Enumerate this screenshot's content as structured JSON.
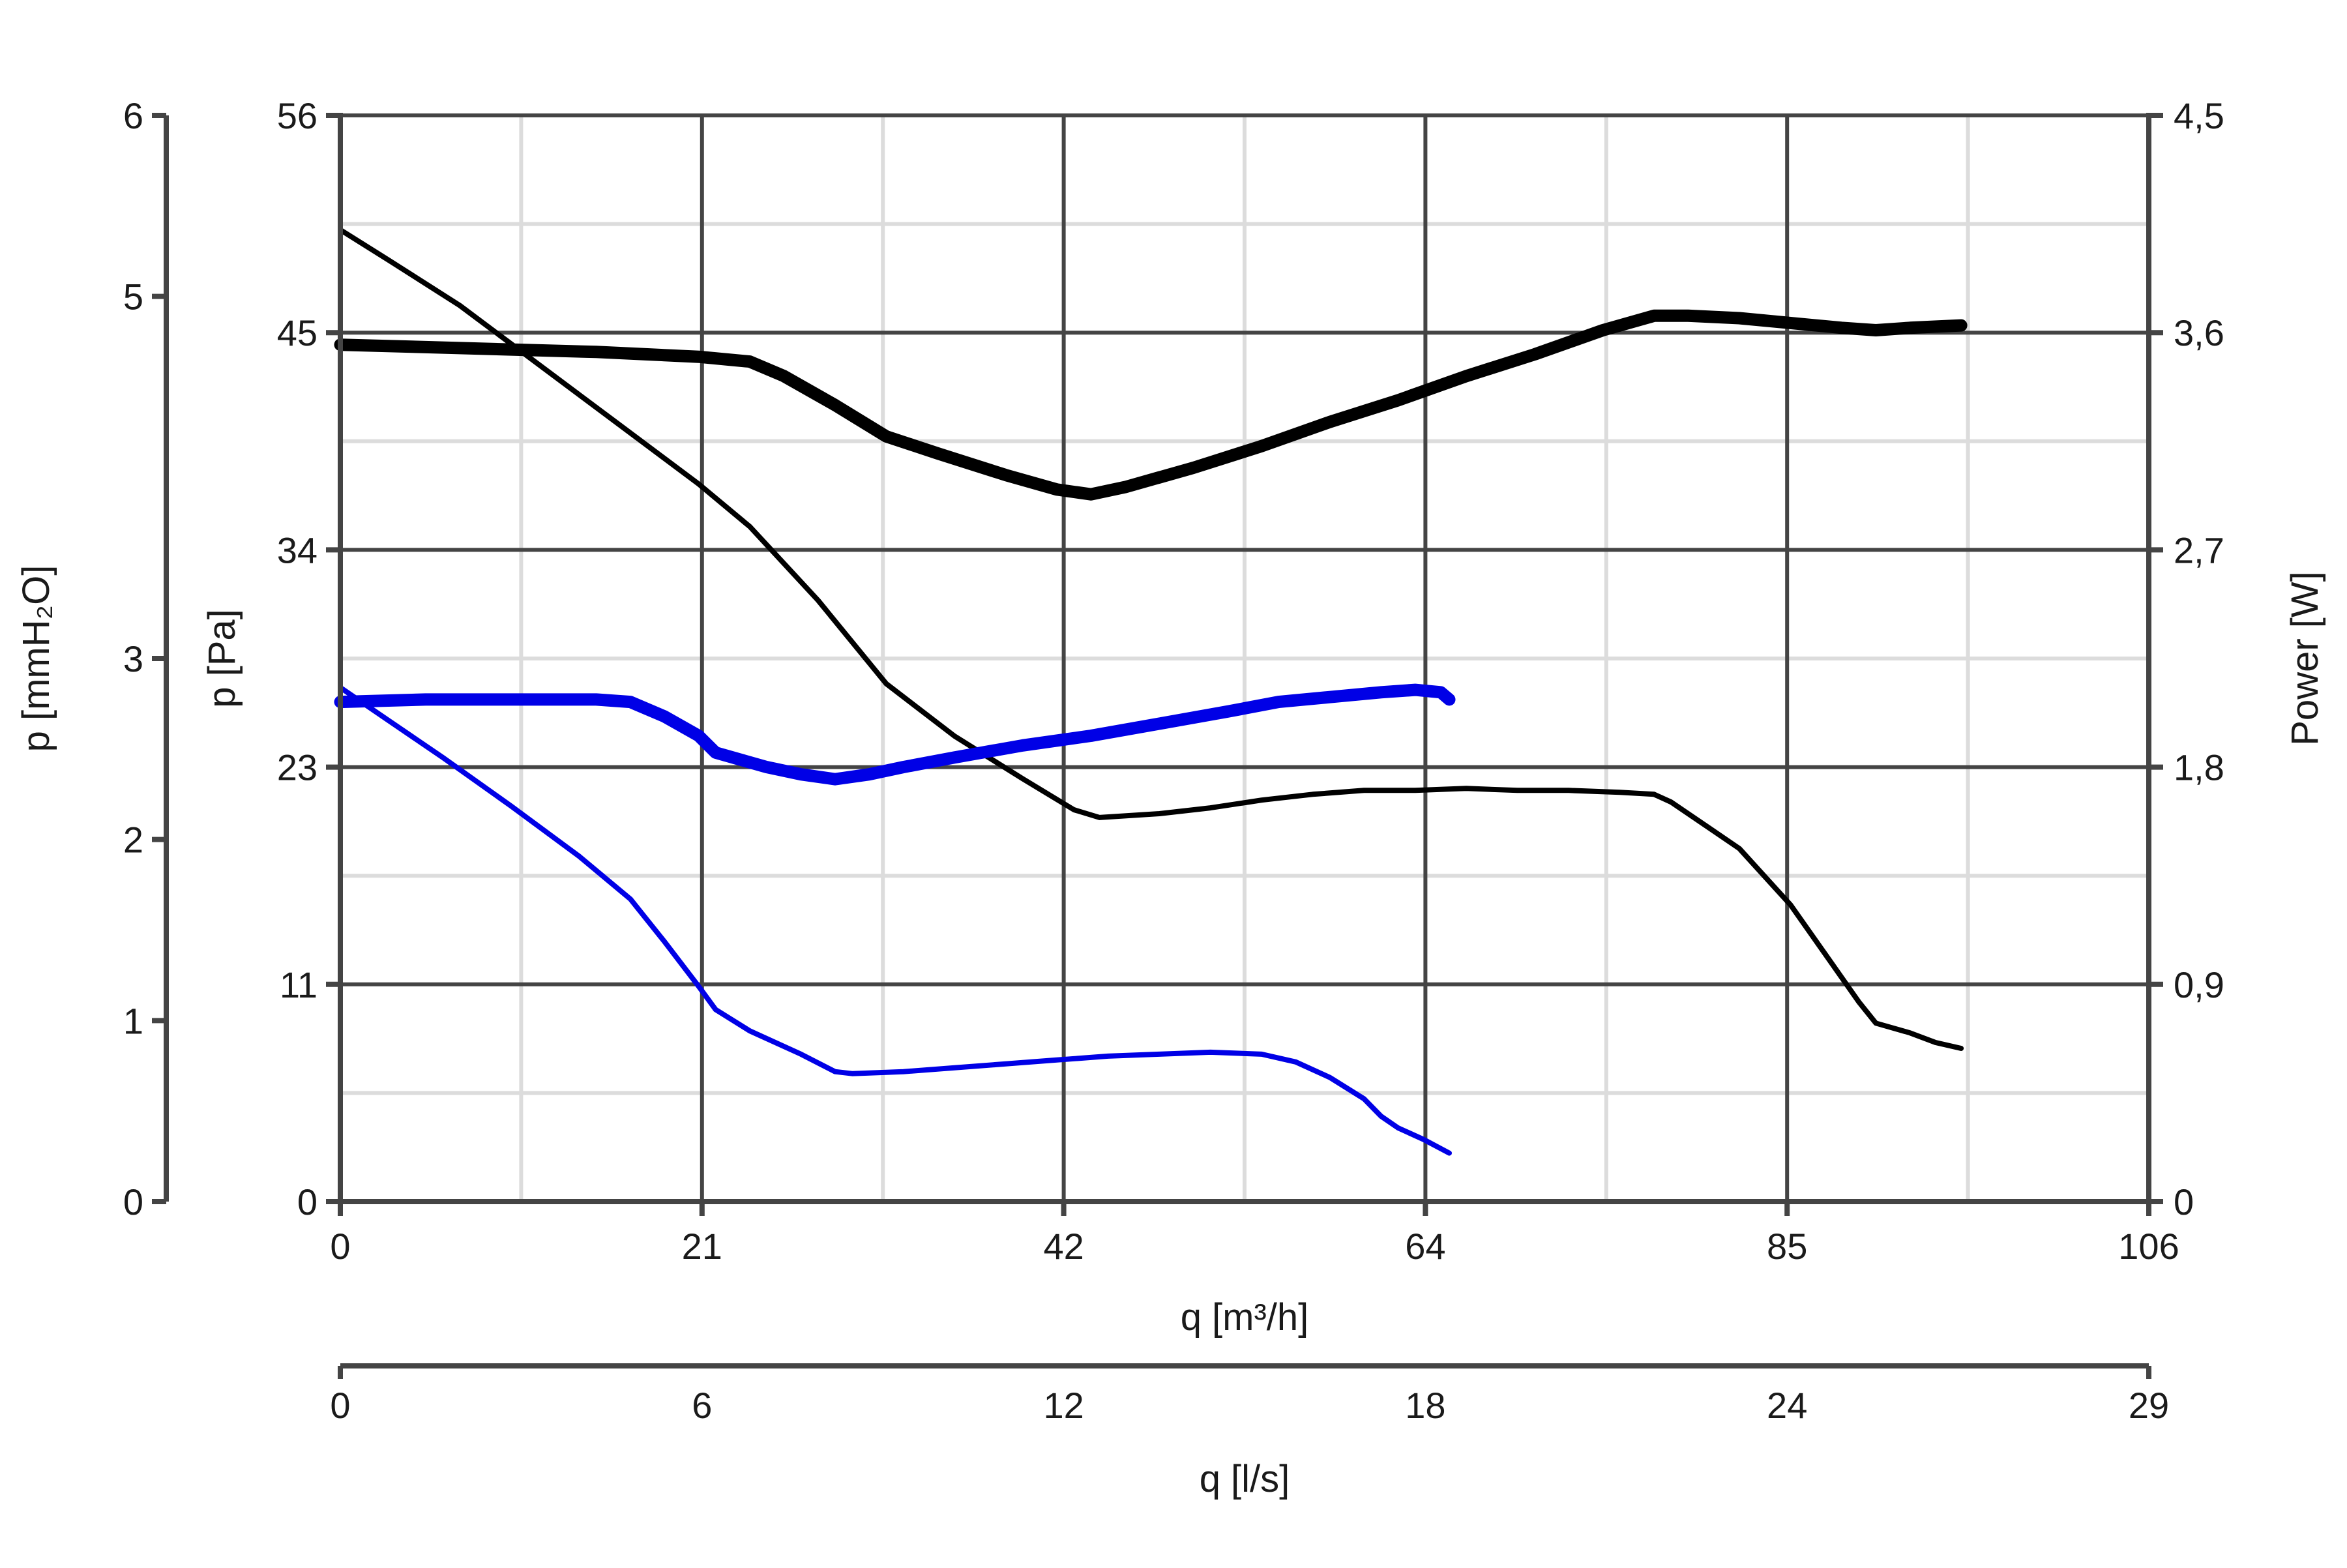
{
  "chart_data": {
    "type": "line",
    "title": "",
    "x_primary": {
      "label": "q [m³/h]",
      "range": [
        0,
        106
      ],
      "ticks": [
        "0",
        "21",
        "42",
        "64",
        "85",
        "106"
      ]
    },
    "x_secondary": {
      "label": "q [l/s]",
      "range": [
        0,
        29
      ],
      "ticks": [
        "0",
        "6",
        "12",
        "18",
        "24",
        "29"
      ]
    },
    "y_left_outer": {
      "label": "p [mmH₂O]",
      "range": [
        0,
        6
      ],
      "ticks": [
        "0",
        "1",
        "2",
        "3",
        "5",
        "6"
      ]
    },
    "y_left": {
      "label": "p [Pa]",
      "range": [
        0,
        56
      ],
      "ticks": [
        "0",
        "11",
        "23",
        "34",
        "45",
        "56"
      ]
    },
    "y_right": {
      "label": "Power [W]",
      "range": [
        0,
        4.5
      ],
      "ticks": [
        "0",
        "0,9",
        "1,8",
        "2,7",
        "3,6",
        "4,5"
      ]
    },
    "grid": true,
    "legend": "none",
    "series": [
      {
        "kind": "pressure",
        "axis": "left",
        "color": "#000000",
        "weight": "thin",
        "points": [
          [
            0,
            50.1
          ],
          [
            2.9,
            48.5
          ],
          [
            7,
            46.2
          ],
          [
            14,
            41.6
          ],
          [
            21,
            37.0
          ],
          [
            24,
            34.8
          ],
          [
            28,
            31.0
          ],
          [
            32,
            26.7
          ],
          [
            36,
            24.0
          ],
          [
            40,
            21.8
          ],
          [
            43,
            20.2
          ],
          [
            44.5,
            19.8
          ],
          [
            48,
            20.0
          ],
          [
            51,
            20.3
          ],
          [
            54,
            20.7
          ],
          [
            57,
            21.0
          ],
          [
            60,
            21.2
          ],
          [
            63,
            21.2
          ],
          [
            66,
            21.3
          ],
          [
            69,
            21.2
          ],
          [
            72,
            21.2
          ],
          [
            75,
            21.1
          ],
          [
            77,
            21.0
          ],
          [
            78,
            20.6
          ],
          [
            80,
            19.4
          ],
          [
            82,
            18.2
          ],
          [
            85,
            15.3
          ],
          [
            87,
            12.8
          ],
          [
            89,
            10.3
          ],
          [
            90,
            9.2
          ],
          [
            92,
            8.7
          ],
          [
            93.5,
            8.2
          ],
          [
            95,
            7.9
          ]
        ]
      },
      {
        "kind": "pressure",
        "axis": "left",
        "color": "#0000e6",
        "weight": "thin",
        "points": [
          [
            0,
            26.5
          ],
          [
            3,
            24.7
          ],
          [
            6,
            22.9
          ],
          [
            10,
            20.4
          ],
          [
            14,
            17.8
          ],
          [
            17,
            15.6
          ],
          [
            19,
            13.4
          ],
          [
            21,
            11.1
          ],
          [
            22,
            9.9
          ],
          [
            24,
            8.8
          ],
          [
            27,
            7.6
          ],
          [
            29,
            6.7
          ],
          [
            30,
            6.6
          ],
          [
            33,
            6.7
          ],
          [
            36,
            6.9
          ],
          [
            39,
            7.1
          ],
          [
            42,
            7.3
          ],
          [
            45,
            7.5
          ],
          [
            48,
            7.6
          ],
          [
            51,
            7.7
          ],
          [
            54,
            7.6
          ],
          [
            56,
            7.2
          ],
          [
            58,
            6.4
          ],
          [
            60,
            5.3
          ],
          [
            61,
            4.4
          ],
          [
            62,
            3.8
          ],
          [
            63.5,
            3.2
          ],
          [
            65,
            2.5
          ]
        ]
      },
      {
        "kind": "power",
        "axis": "right",
        "color": "#000000",
        "weight": "thick",
        "points": [
          [
            0,
            3.55
          ],
          [
            5,
            3.54
          ],
          [
            10,
            3.53
          ],
          [
            15,
            3.52
          ],
          [
            18,
            3.51
          ],
          [
            21,
            3.5
          ],
          [
            24,
            3.48
          ],
          [
            26,
            3.42
          ],
          [
            29,
            3.3
          ],
          [
            32,
            3.17
          ],
          [
            35,
            3.1
          ],
          [
            39,
            3.01
          ],
          [
            42,
            2.95
          ],
          [
            44,
            2.93
          ],
          [
            46,
            2.96
          ],
          [
            50,
            3.04
          ],
          [
            54,
            3.13
          ],
          [
            58,
            3.23
          ],
          [
            62,
            3.32
          ],
          [
            66,
            3.42
          ],
          [
            70,
            3.51
          ],
          [
            74,
            3.61
          ],
          [
            77,
            3.67
          ],
          [
            79,
            3.67
          ],
          [
            82,
            3.66
          ],
          [
            85,
            3.64
          ],
          [
            88,
            3.62
          ],
          [
            90,
            3.61
          ],
          [
            92,
            3.62
          ],
          [
            95,
            3.63
          ]
        ]
      },
      {
        "kind": "power",
        "axis": "right",
        "color": "#0000e6",
        "weight": "thick",
        "points": [
          [
            0,
            2.07
          ],
          [
            5,
            2.08
          ],
          [
            10,
            2.08
          ],
          [
            15,
            2.08
          ],
          [
            17,
            2.07
          ],
          [
            19,
            2.01
          ],
          [
            21,
            1.93
          ],
          [
            22,
            1.86
          ],
          [
            25,
            1.8
          ],
          [
            27,
            1.77
          ],
          [
            29,
            1.75
          ],
          [
            31,
            1.77
          ],
          [
            33,
            1.8
          ],
          [
            36,
            1.84
          ],
          [
            40,
            1.89
          ],
          [
            44,
            1.93
          ],
          [
            48,
            1.98
          ],
          [
            52,
            2.03
          ],
          [
            55,
            2.07
          ],
          [
            58,
            2.09
          ],
          [
            61,
            2.11
          ],
          [
            63,
            2.12
          ],
          [
            64.5,
            2.11
          ],
          [
            65,
            2.08
          ]
        ]
      }
    ]
  }
}
